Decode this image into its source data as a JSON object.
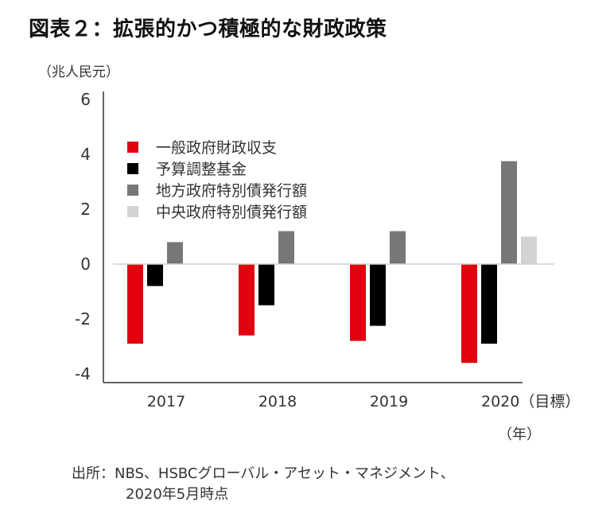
{
  "title": "図表２：拡張的かつ積極的な財政政策",
  "unit_label": "（兆人民元）",
  "x_unit_label": "（年）",
  "source": {
    "line1": "出所：NBS、HSBCグローバル・アセット・マネジメント、",
    "line2": "2020年5月時点"
  },
  "chart_data": {
    "type": "bar",
    "title": "拡張的かつ積極的な財政政策",
    "xlabel": "（年）",
    "ylabel": "（兆人民元）",
    "categories": [
      "2017",
      "2018",
      "2019",
      "2020（目標）"
    ],
    "ylim": [
      -4,
      6
    ],
    "yticks": [
      6,
      4,
      2,
      0,
      -2,
      -4
    ],
    "grid": false,
    "legend_position": "top-left",
    "series": [
      {
        "name": "一般政府財政収支",
        "color": "#e0000f",
        "values": [
          -2.9,
          -2.6,
          -2.8,
          -3.6
        ]
      },
      {
        "name": "予算調整基金",
        "color": "#000000",
        "values": [
          -0.8,
          -1.5,
          -2.25,
          -2.9
        ]
      },
      {
        "name": "地方政府特別債発行額",
        "color": "#777777",
        "values": [
          0.8,
          1.2,
          1.2,
          3.75
        ]
      },
      {
        "name": "中央政府特別債発行額",
        "color": "#d3d3d3",
        "values": [
          null,
          null,
          null,
          1.0
        ]
      }
    ]
  }
}
